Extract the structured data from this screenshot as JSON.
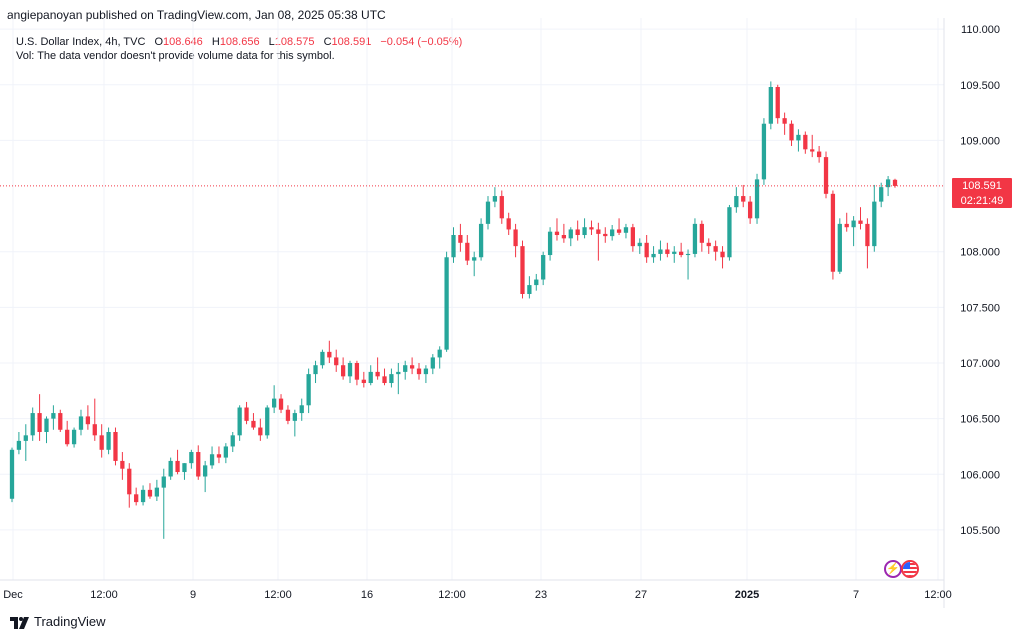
{
  "header": {
    "published": "angiepanoyan published on TradingView.com, Jan 08, 2025 05:38 UTC"
  },
  "legend": {
    "symbol": "U.S. Dollar Index, 4h, TVC",
    "open_label": "O",
    "open": "108.646",
    "high_label": "H",
    "high": "108.656",
    "low_label": "L",
    "low": "108.575",
    "close_label": "C",
    "close": "108.591",
    "change": "−0.054 (−0.05%)",
    "volume_note": "Vol: The data vendor doesn't provide volume data for this symbol."
  },
  "price_label": {
    "price": "108.591",
    "countdown": "02:21:49"
  },
  "footer": {
    "brand": "TradingView"
  },
  "colors": {
    "up": "#26a69a",
    "down": "#f23645",
    "grid": "#f0f3fa",
    "axis_text": "#131722",
    "last_price_line": "#f23645"
  },
  "icons": [
    "flash-icon",
    "us-flag-icon",
    "tradingview-logo-icon"
  ],
  "chart_data": {
    "type": "candlestick",
    "title": "U.S. Dollar Index, 4h, TVC",
    "ylim": [
      105.05,
      110.1
    ],
    "y_ticks": [
      "110.000",
      "109.500",
      "109.000",
      "108.000",
      "107.500",
      "107.000",
      "106.500",
      "106.000",
      "105.500"
    ],
    "x_ticks": [
      "Dec",
      "12:00",
      "9",
      "12:00",
      "16",
      "12:00",
      "23",
      "27",
      "2025",
      "7",
      "12:00"
    ],
    "last_price": 108.591,
    "grid": true,
    "candles": [
      [
        105.78,
        106.24,
        105.75,
        106.22
      ],
      [
        106.22,
        106.38,
        106.18,
        106.3
      ],
      [
        106.3,
        106.45,
        106.12,
        106.35
      ],
      [
        106.35,
        106.6,
        106.3,
        106.55
      ],
      [
        106.55,
        106.72,
        106.3,
        106.38
      ],
      [
        106.38,
        106.52,
        106.28,
        106.5
      ],
      [
        106.5,
        106.62,
        106.4,
        106.55
      ],
      [
        106.55,
        106.58,
        106.38,
        106.4
      ],
      [
        106.4,
        106.48,
        106.25,
        106.27
      ],
      [
        106.27,
        106.42,
        106.24,
        106.4
      ],
      [
        106.4,
        106.58,
        106.35,
        106.52
      ],
      [
        106.52,
        106.62,
        106.4,
        106.45
      ],
      [
        106.45,
        106.68,
        106.3,
        106.35
      ],
      [
        106.35,
        106.45,
        106.15,
        106.22
      ],
      [
        106.22,
        106.42,
        106.18,
        106.38
      ],
      [
        106.38,
        106.42,
        106.08,
        106.12
      ],
      [
        106.12,
        106.2,
        105.95,
        106.05
      ],
      [
        106.05,
        106.1,
        105.7,
        105.82
      ],
      [
        105.82,
        105.88,
        105.72,
        105.75
      ],
      [
        105.75,
        105.9,
        105.72,
        105.86
      ],
      [
        105.86,
        105.92,
        105.78,
        105.8
      ],
      [
        105.8,
        105.95,
        105.76,
        105.88
      ],
      [
        105.88,
        106.05,
        105.42,
        105.98
      ],
      [
        105.98,
        106.15,
        105.95,
        106.12
      ],
      [
        106.12,
        106.22,
        106.0,
        106.02
      ],
      [
        106.02,
        106.1,
        105.95,
        106.1
      ],
      [
        106.1,
        106.22,
        106.05,
        106.2
      ],
      [
        106.2,
        106.26,
        105.95,
        105.98
      ],
      [
        105.98,
        106.12,
        105.84,
        106.08
      ],
      [
        106.08,
        106.25,
        106.05,
        106.18
      ],
      [
        106.18,
        106.25,
        106.1,
        106.15
      ],
      [
        106.15,
        106.28,
        106.1,
        106.25
      ],
      [
        106.25,
        106.38,
        106.2,
        106.35
      ],
      [
        106.35,
        106.62,
        106.3,
        106.6
      ],
      [
        106.6,
        106.65,
        106.45,
        106.48
      ],
      [
        106.48,
        106.55,
        106.4,
        106.42
      ],
      [
        106.42,
        106.5,
        106.3,
        106.35
      ],
      [
        106.35,
        106.62,
        106.32,
        106.6
      ],
      [
        106.6,
        106.8,
        106.55,
        106.68
      ],
      [
        106.68,
        106.72,
        106.55,
        106.58
      ],
      [
        106.58,
        106.62,
        106.45,
        106.48
      ],
      [
        106.48,
        106.58,
        106.34,
        106.55
      ],
      [
        106.55,
        106.68,
        106.48,
        106.62
      ],
      [
        106.62,
        106.95,
        106.55,
        106.9
      ],
      [
        106.9,
        107.02,
        106.82,
        106.98
      ],
      [
        106.98,
        107.12,
        106.95,
        107.1
      ],
      [
        107.1,
        107.2,
        107.0,
        107.05
      ],
      [
        107.05,
        107.12,
        106.92,
        106.98
      ],
      [
        106.98,
        107.05,
        106.85,
        106.88
      ],
      [
        106.88,
        107.02,
        106.82,
        107.0
      ],
      [
        107.0,
        107.02,
        106.8,
        106.85
      ],
      [
        106.85,
        106.92,
        106.78,
        106.82
      ],
      [
        106.82,
        106.98,
        106.8,
        106.92
      ],
      [
        106.92,
        107.05,
        106.85,
        106.88
      ],
      [
        106.88,
        106.95,
        106.8,
        106.82
      ],
      [
        106.82,
        106.95,
        106.78,
        106.9
      ],
      [
        106.9,
        107.0,
        106.72,
        106.92
      ],
      [
        106.92,
        107.02,
        106.85,
        106.98
      ],
      [
        106.98,
        107.05,
        106.9,
        106.95
      ],
      [
        106.95,
        107.0,
        106.85,
        106.9
      ],
      [
        106.9,
        106.98,
        106.82,
        106.95
      ],
      [
        106.95,
        107.08,
        106.9,
        107.05
      ],
      [
        107.05,
        107.15,
        106.95,
        107.12
      ],
      [
        107.12,
        108.0,
        107.1,
        107.95
      ],
      [
        107.95,
        108.22,
        107.9,
        108.15
      ],
      [
        108.15,
        108.25,
        108.0,
        108.08
      ],
      [
        108.08,
        108.15,
        107.88,
        107.92
      ],
      [
        107.92,
        108.0,
        107.78,
        107.95
      ],
      [
        107.95,
        108.3,
        107.92,
        108.25
      ],
      [
        108.25,
        108.5,
        108.2,
        108.45
      ],
      [
        108.45,
        108.58,
        108.4,
        108.5
      ],
      [
        108.5,
        108.55,
        108.25,
        108.3
      ],
      [
        108.3,
        108.35,
        108.15,
        108.2
      ],
      [
        108.2,
        108.25,
        107.95,
        108.05
      ],
      [
        108.05,
        108.1,
        107.58,
        107.62
      ],
      [
        107.62,
        107.78,
        107.58,
        107.7
      ],
      [
        107.7,
        107.8,
        107.65,
        107.75
      ],
      [
        107.75,
        108.0,
        107.7,
        107.97
      ],
      [
        107.97,
        108.22,
        107.92,
        108.18
      ],
      [
        108.18,
        108.3,
        108.1,
        108.15
      ],
      [
        108.15,
        108.25,
        108.08,
        108.12
      ],
      [
        108.12,
        108.22,
        108.05,
        108.2
      ],
      [
        108.2,
        108.28,
        108.1,
        108.15
      ],
      [
        108.15,
        108.3,
        108.12,
        108.22
      ],
      [
        108.22,
        108.28,
        108.15,
        108.2
      ],
      [
        108.2,
        108.26,
        107.92,
        108.16
      ],
      [
        108.16,
        108.22,
        108.08,
        108.14
      ],
      [
        108.14,
        108.24,
        108.1,
        108.2
      ],
      [
        108.2,
        108.3,
        108.15,
        108.17
      ],
      [
        108.17,
        108.25,
        108.12,
        108.22
      ],
      [
        108.22,
        108.25,
        108.0,
        108.05
      ],
      [
        108.05,
        108.12,
        107.98,
        108.08
      ],
      [
        108.08,
        108.15,
        107.9,
        107.95
      ],
      [
        107.95,
        108.05,
        107.9,
        107.98
      ],
      [
        107.98,
        108.1,
        107.92,
        108.02
      ],
      [
        108.02,
        108.08,
        107.95,
        107.98
      ],
      [
        107.98,
        108.05,
        107.9,
        108.0
      ],
      [
        108.0,
        108.08,
        107.95,
        107.97
      ],
      [
        107.97,
        108.02,
        107.75,
        107.98
      ],
      [
        107.98,
        108.3,
        107.95,
        108.25
      ],
      [
        108.25,
        108.28,
        108.0,
        108.08
      ],
      [
        108.08,
        108.12,
        107.98,
        108.05
      ],
      [
        108.05,
        108.1,
        107.92,
        108.0
      ],
      [
        108.0,
        108.05,
        107.85,
        107.95
      ],
      [
        107.95,
        108.42,
        107.92,
        108.4
      ],
      [
        108.4,
        108.58,
        108.35,
        108.5
      ],
      [
        108.5,
        108.6,
        108.4,
        108.45
      ],
      [
        108.45,
        108.5,
        108.25,
        108.3
      ],
      [
        108.3,
        108.7,
        108.25,
        108.65
      ],
      [
        108.65,
        109.2,
        108.6,
        109.15
      ],
      [
        109.15,
        109.53,
        109.1,
        109.48
      ],
      [
        109.48,
        109.5,
        109.15,
        109.2
      ],
      [
        109.2,
        109.25,
        109.05,
        109.15
      ],
      [
        109.15,
        109.18,
        108.95,
        109.0
      ],
      [
        109.0,
        109.1,
        108.9,
        109.05
      ],
      [
        109.05,
        109.08,
        108.88,
        108.92
      ],
      [
        108.92,
        109.05,
        108.85,
        108.9
      ],
      [
        108.9,
        108.95,
        108.8,
        108.85
      ],
      [
        108.85,
        108.9,
        108.48,
        108.52
      ],
      [
        108.52,
        108.55,
        107.75,
        107.82
      ],
      [
        107.82,
        108.3,
        107.8,
        108.25
      ],
      [
        108.25,
        108.35,
        108.18,
        108.22
      ],
      [
        108.22,
        108.32,
        108.05,
        108.28
      ],
      [
        108.28,
        108.4,
        108.2,
        108.25
      ],
      [
        108.25,
        108.3,
        107.85,
        108.05
      ],
      [
        108.05,
        108.6,
        108.0,
        108.45
      ],
      [
        108.45,
        108.62,
        108.4,
        108.58
      ],
      [
        108.58,
        108.68,
        108.5,
        108.65
      ],
      [
        108.646,
        108.656,
        108.575,
        108.591
      ]
    ]
  }
}
